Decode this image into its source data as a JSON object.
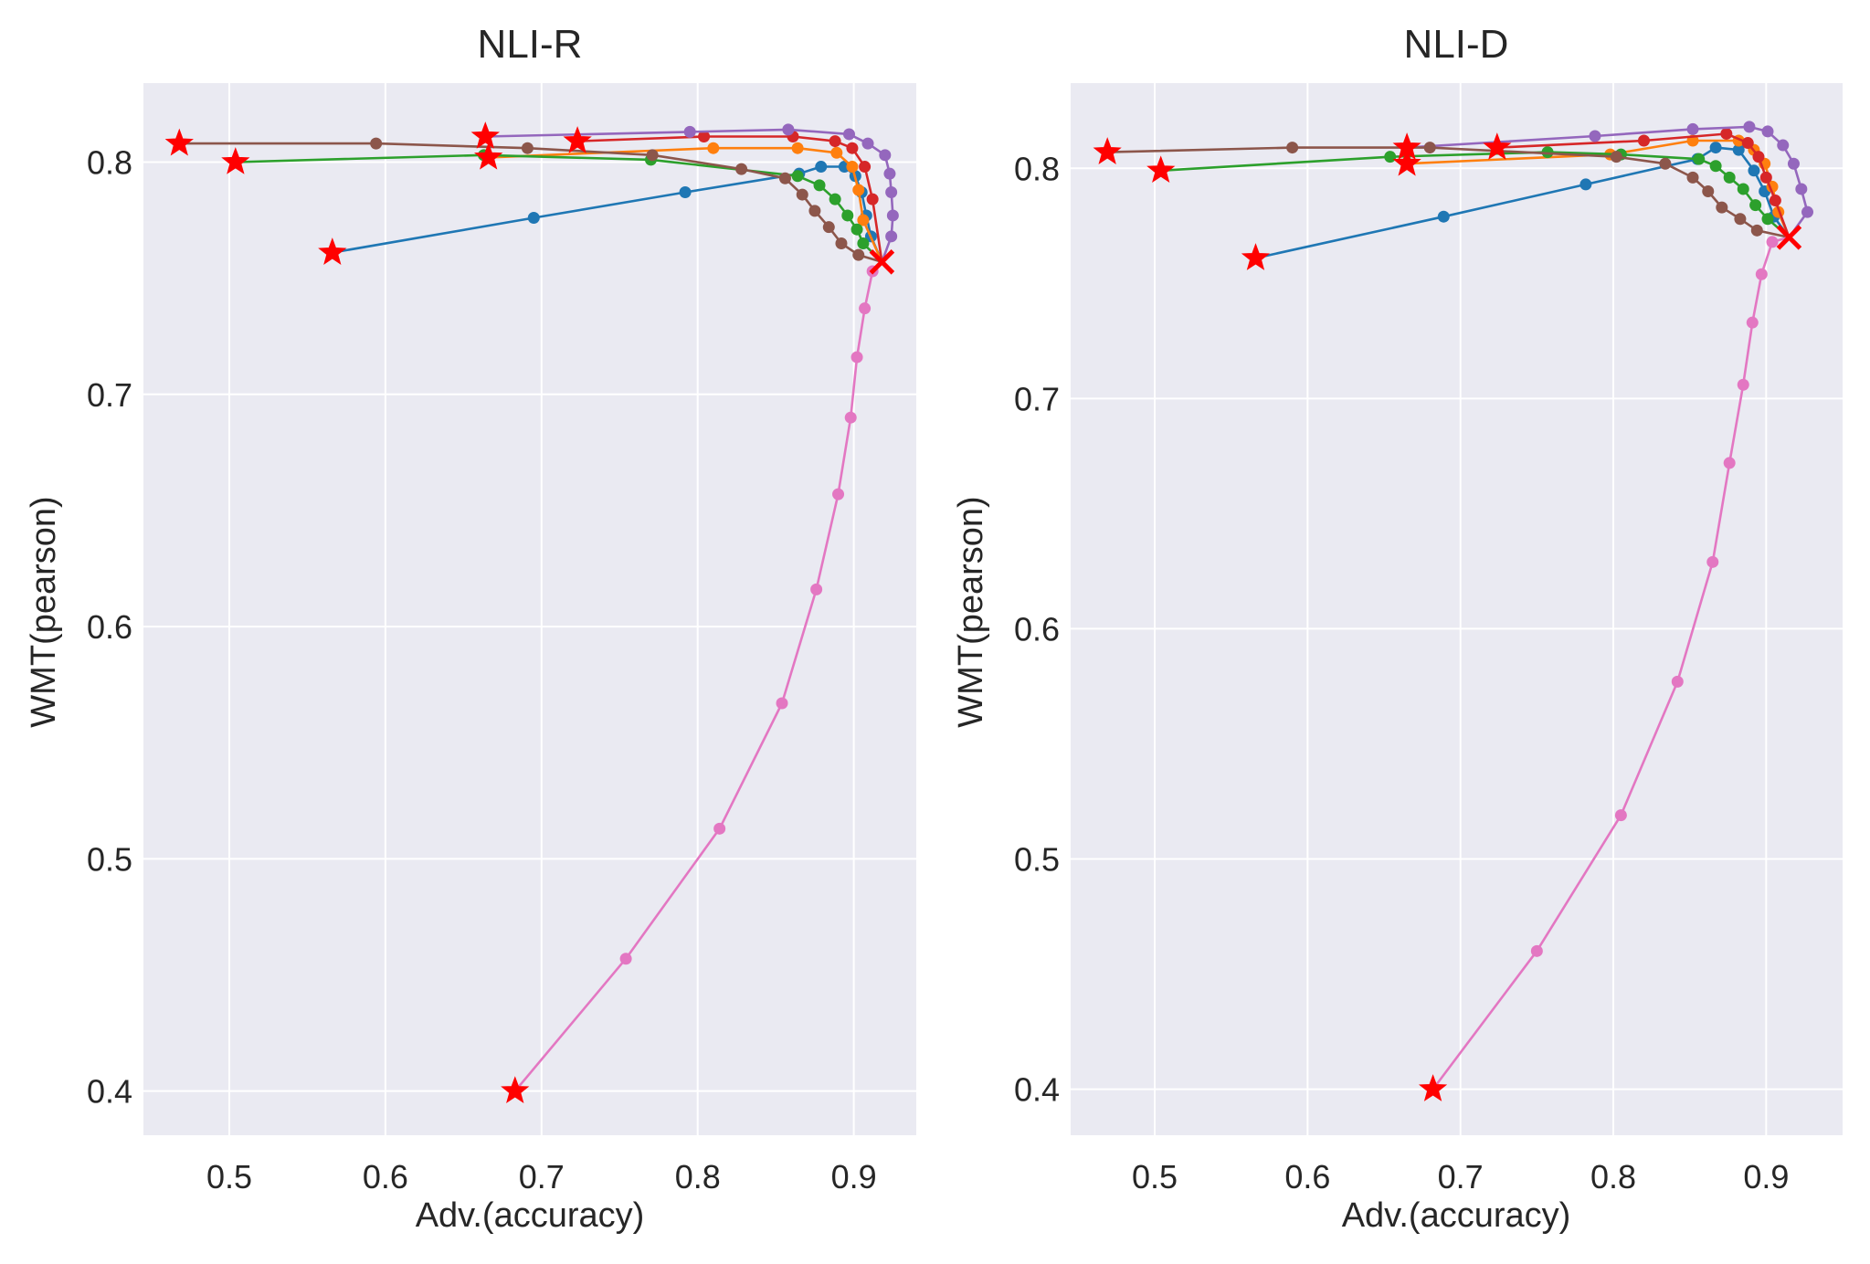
{
  "chart_data": [
    {
      "type": "line",
      "title": "NLI-R",
      "xlabel": "Adv.(accuracy)",
      "ylabel": "WMT(pearson)",
      "xlim": [
        0.445,
        0.94
      ],
      "ylim": [
        0.381,
        0.834
      ],
      "xticks": [
        0.5,
        0.6,
        0.7,
        0.8,
        0.9
      ],
      "xtick_labels": [
        "0.5",
        "0.6",
        "0.7",
        "0.8",
        "0.9"
      ],
      "yticks": [
        0.4,
        0.5,
        0.6,
        0.7,
        0.8
      ],
      "ytick_labels": [
        "0.4",
        "0.5",
        "0.6",
        "0.7",
        "0.8"
      ],
      "grid": true,
      "legend": "none",
      "end_marker": {
        "x": 0.918,
        "y": 0.757,
        "marker": "x",
        "color": "#ff0000"
      },
      "series": [
        {
          "name": "blue",
          "color": "#1f77b4",
          "start_marker": "star",
          "x": [
            0.566,
            0.695,
            0.792,
            0.865,
            0.879,
            0.894,
            0.901,
            0.905,
            0.908,
            0.911,
            0.918
          ],
          "y": [
            0.761,
            0.776,
            0.787,
            0.795,
            0.798,
            0.798,
            0.794,
            0.787,
            0.777,
            0.768,
            0.757
          ]
        },
        {
          "name": "orange",
          "color": "#ff7f0e",
          "start_marker": "star",
          "x": [
            0.666,
            0.81,
            0.864,
            0.889,
            0.899,
            0.903,
            0.906,
            0.918
          ],
          "y": [
            0.802,
            0.806,
            0.806,
            0.804,
            0.798,
            0.788,
            0.775,
            0.757
          ]
        },
        {
          "name": "green",
          "color": "#2ca02c",
          "start_marker": "star",
          "x": [
            0.504,
            0.663,
            0.77,
            0.864,
            0.878,
            0.888,
            0.896,
            0.902,
            0.906,
            0.918
          ],
          "y": [
            0.8,
            0.803,
            0.801,
            0.794,
            0.79,
            0.784,
            0.777,
            0.771,
            0.765,
            0.757
          ]
        },
        {
          "name": "red",
          "color": "#d62728",
          "start_marker": "star",
          "x": [
            0.723,
            0.804,
            0.861,
            0.888,
            0.899,
            0.907,
            0.912,
            0.918
          ],
          "y": [
            0.809,
            0.811,
            0.811,
            0.809,
            0.806,
            0.798,
            0.784,
            0.757
          ]
        },
        {
          "name": "purple",
          "color": "#9467bd",
          "start_marker": "star",
          "x": [
            0.664,
            0.795,
            0.858,
            0.897,
            0.909,
            0.92,
            0.923,
            0.924,
            0.925,
            0.924,
            0.918
          ],
          "y": [
            0.811,
            0.813,
            0.814,
            0.812,
            0.808,
            0.803,
            0.795,
            0.787,
            0.777,
            0.768,
            0.757
          ]
        },
        {
          "name": "brown",
          "color": "#8c564b",
          "start_marker": "star",
          "x": [
            0.468,
            0.594,
            0.691,
            0.771,
            0.828,
            0.856,
            0.867,
            0.875,
            0.884,
            0.892,
            0.903,
            0.918
          ],
          "y": [
            0.808,
            0.808,
            0.806,
            0.803,
            0.797,
            0.793,
            0.786,
            0.779,
            0.772,
            0.765,
            0.76,
            0.757
          ]
        },
        {
          "name": "pink",
          "color": "#e377c2",
          "start_marker": "star",
          "x": [
            0.683,
            0.754,
            0.814,
            0.854,
            0.876,
            0.89,
            0.898,
            0.902,
            0.907,
            0.912,
            0.918
          ],
          "y": [
            0.4,
            0.457,
            0.513,
            0.567,
            0.616,
            0.657,
            0.69,
            0.716,
            0.737,
            0.753,
            0.757
          ]
        }
      ]
    },
    {
      "type": "line",
      "title": "NLI-D",
      "xlabel": "Adv.(accuracy)",
      "ylabel": "WMT(pearson)",
      "xlim": [
        0.445,
        0.95
      ],
      "ylim": [
        0.38,
        0.837
      ],
      "xticks": [
        0.5,
        0.6,
        0.7,
        0.8,
        0.9
      ],
      "xtick_labels": [
        "0.5",
        "0.6",
        "0.7",
        "0.8",
        "0.9"
      ],
      "yticks": [
        0.4,
        0.5,
        0.6,
        0.7,
        0.8
      ],
      "ytick_labels": [
        "0.4",
        "0.5",
        "0.6",
        "0.7",
        "0.8"
      ],
      "grid": true,
      "legend": "none",
      "end_marker": {
        "x": 0.915,
        "y": 0.77,
        "marker": "x",
        "color": "#ff0000"
      },
      "series": [
        {
          "name": "blue",
          "color": "#1f77b4",
          "start_marker": "star",
          "x": [
            0.566,
            0.689,
            0.782,
            0.855,
            0.867,
            0.882,
            0.892,
            0.899,
            0.905,
            0.915
          ],
          "y": [
            0.761,
            0.779,
            0.793,
            0.804,
            0.809,
            0.808,
            0.799,
            0.79,
            0.779,
            0.77
          ]
        },
        {
          "name": "orange",
          "color": "#ff7f0e",
          "start_marker": "star",
          "x": [
            0.665,
            0.798,
            0.852,
            0.882,
            0.892,
            0.899,
            0.904,
            0.908,
            0.915
          ],
          "y": [
            0.802,
            0.806,
            0.812,
            0.812,
            0.808,
            0.802,
            0.792,
            0.781,
            0.77
          ]
        },
        {
          "name": "green",
          "color": "#2ca02c",
          "start_marker": "star",
          "x": [
            0.504,
            0.654,
            0.757,
            0.805,
            0.856,
            0.867,
            0.876,
            0.885,
            0.893,
            0.901,
            0.915
          ],
          "y": [
            0.799,
            0.805,
            0.807,
            0.806,
            0.804,
            0.801,
            0.796,
            0.791,
            0.784,
            0.778,
            0.77
          ]
        },
        {
          "name": "red",
          "color": "#d62728",
          "start_marker": "star",
          "x": [
            0.724,
            0.82,
            0.874,
            0.888,
            0.895,
            0.9,
            0.906,
            0.915
          ],
          "y": [
            0.809,
            0.812,
            0.815,
            0.811,
            0.805,
            0.796,
            0.786,
            0.77
          ]
        },
        {
          "name": "purple",
          "color": "#9467bd",
          "start_marker": "star",
          "x": [
            0.665,
            0.788,
            0.852,
            0.889,
            0.901,
            0.911,
            0.918,
            0.923,
            0.927,
            0.915
          ],
          "y": [
            0.809,
            0.814,
            0.817,
            0.818,
            0.816,
            0.81,
            0.802,
            0.791,
            0.781,
            0.77
          ]
        },
        {
          "name": "brown",
          "color": "#8c564b",
          "start_marker": "star",
          "x": [
            0.469,
            0.59,
            0.68,
            0.802,
            0.834,
            0.852,
            0.862,
            0.871,
            0.883,
            0.894,
            0.915
          ],
          "y": [
            0.807,
            0.809,
            0.809,
            0.805,
            0.802,
            0.796,
            0.79,
            0.783,
            0.778,
            0.773,
            0.77
          ]
        },
        {
          "name": "pink",
          "color": "#e377c2",
          "start_marker": "star",
          "x": [
            0.682,
            0.75,
            0.805,
            0.842,
            0.865,
            0.876,
            0.885,
            0.891,
            0.897,
            0.904,
            0.915
          ],
          "y": [
            0.4,
            0.46,
            0.519,
            0.577,
            0.629,
            0.672,
            0.706,
            0.733,
            0.754,
            0.768,
            0.77
          ]
        }
      ]
    }
  ]
}
